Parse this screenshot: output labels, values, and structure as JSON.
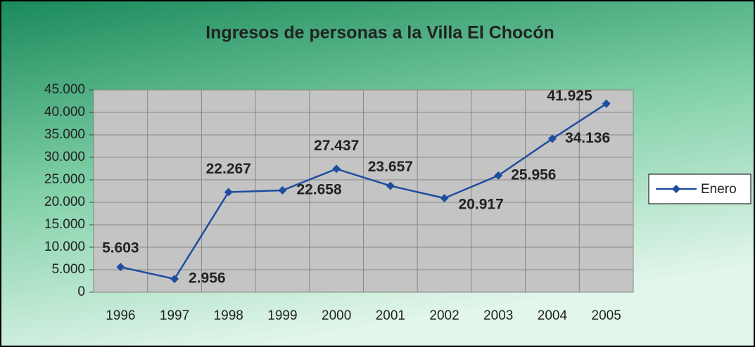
{
  "chart_data": {
    "type": "line",
    "title": "Ingresos de personas a la Villa El Chocón",
    "categories": [
      "1996",
      "1997",
      "1998",
      "1999",
      "2000",
      "2001",
      "2002",
      "2003",
      "2004",
      "2005"
    ],
    "series": [
      {
        "name": "Enero",
        "color": "#1f4e9e",
        "values": [
          5603,
          2956,
          22267,
          22658,
          27437,
          23657,
          20917,
          25956,
          34136,
          41925
        ],
        "value_labels": [
          "5.603",
          "2.956",
          "22.267",
          "22.658",
          "27.437",
          "23.657",
          "20.917",
          "25.956",
          "34.136",
          "41.925"
        ]
      }
    ],
    "ylim": [
      0,
      45000
    ],
    "yticks": [
      0,
      {
        "value": 5000,
        "label": "5.000"
      },
      {
        "value": 10000,
        "label": "10.000"
      },
      {
        "value": 15000,
        "label": "15.000"
      },
      {
        "value": 20000,
        "label": "20.000"
      },
      {
        "value": 25000,
        "label": "25.000"
      },
      {
        "value": 30000,
        "label": "30.000"
      },
      {
        "value": 35000,
        "label": "35.000"
      },
      {
        "value": 40000,
        "label": "40.000"
      },
      {
        "value": 45000,
        "label": "45.000"
      }
    ],
    "grid": true,
    "legend": "right"
  }
}
